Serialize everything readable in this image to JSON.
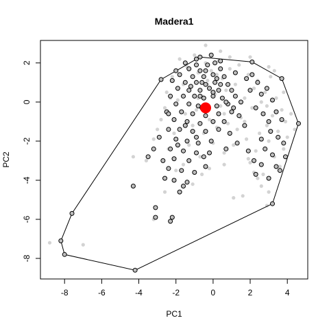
{
  "chart_data": {
    "type": "scatter",
    "title": "Madera1",
    "xlabel": "PC1",
    "ylabel": "PC2",
    "xlim": [
      -9.3,
      5.1
    ],
    "ylim": [
      -9.05,
      3.15
    ],
    "xticks": [
      -8,
      -6,
      -4,
      -2,
      0,
      2,
      4
    ],
    "yticks": [
      -8,
      -6,
      -4,
      -2,
      0,
      2
    ],
    "xtick_labels": [
      "-8",
      "-6",
      "-4",
      "-2",
      "0",
      "2",
      "4"
    ],
    "ytick_labels": [
      "-8",
      "-6",
      "-4",
      "-2",
      "0",
      "2"
    ],
    "grid": false,
    "background_points": [
      [
        -8.8,
        -7.2
      ],
      [
        -7.0,
        -7.3
      ],
      [
        -4.3,
        -2.8
      ],
      [
        -3.2,
        -1.9
      ],
      [
        -3.0,
        -1.4
      ],
      [
        -2.8,
        -0.9
      ],
      [
        -2.6,
        -0.3
      ],
      [
        -2.5,
        0.5
      ],
      [
        -2.4,
        -2.4
      ],
      [
        -2.2,
        1.3
      ],
      [
        -2.1,
        -1.6
      ],
      [
        -1.9,
        0.1
      ],
      [
        -1.8,
        2.2
      ],
      [
        -1.6,
        -3.2
      ],
      [
        -1.5,
        -0.6
      ],
      [
        -1.4,
        1.8
      ],
      [
        -1.3,
        -2.2
      ],
      [
        -1.2,
        0.8
      ],
      [
        -1.1,
        -1.2
      ],
      [
        -1.0,
        2.4
      ],
      [
        -0.9,
        -0.4
      ],
      [
        -0.8,
        1.5
      ],
      [
        -0.7,
        -2.8
      ],
      [
        -0.6,
        0.3
      ],
      [
        -0.5,
        -1.6
      ],
      [
        -0.4,
        2.0
      ],
      [
        -0.3,
        0.9
      ],
      [
        -0.2,
        -0.9
      ],
      [
        -0.1,
        1.6
      ],
      [
        0.0,
        -2.1
      ],
      [
        0.1,
        0.4
      ],
      [
        0.2,
        -1.3
      ],
      [
        0.3,
        2.1
      ],
      [
        0.4,
        -0.2
      ],
      [
        0.5,
        1.2
      ],
      [
        0.6,
        -2.6
      ],
      [
        0.7,
        0.6
      ],
      [
        0.8,
        -1.1
      ],
      [
        0.9,
        1.7
      ],
      [
        1.0,
        -0.5
      ],
      [
        1.1,
        -2.2
      ],
      [
        1.2,
        0.9
      ],
      [
        1.3,
        -1.4
      ],
      [
        1.4,
        1.9
      ],
      [
        1.5,
        -0.8
      ],
      [
        1.6,
        -4.8
      ],
      [
        1.7,
        0.2
      ],
      [
        1.8,
        -1.9
      ],
      [
        1.9,
        1.4
      ],
      [
        2.0,
        -3.1
      ],
      [
        2.1,
        -0.3
      ],
      [
        2.2,
        0.7
      ],
      [
        2.3,
        -2.5
      ],
      [
        2.4,
        1.1
      ],
      [
        2.5,
        -1.6
      ],
      [
        2.6,
        0.0
      ],
      [
        2.7,
        -3.7
      ],
      [
        2.8,
        0.5
      ],
      [
        2.9,
        -1.2
      ],
      [
        3.0,
        -2.0
      ],
      [
        3.1,
        1.3
      ],
      [
        3.2,
        -0.7
      ],
      [
        3.3,
        -2.8
      ],
      [
        3.4,
        0.2
      ],
      [
        3.5,
        -1.5
      ],
      [
        3.6,
        -3.3
      ],
      [
        3.7,
        -0.4
      ],
      [
        3.8,
        -2.4
      ],
      [
        3.9,
        -1.0
      ],
      [
        4.0,
        -1.8
      ],
      [
        4.2,
        -0.6
      ],
      [
        4.4,
        -1.4
      ],
      [
        2.6,
        -4.3
      ],
      [
        2.4,
        -3.9
      ],
      [
        3.0,
        -4.6
      ],
      [
        2.9,
        -5.3
      ],
      [
        -0.6,
        -3.7
      ],
      [
        -1.1,
        -4.2
      ],
      [
        -2.0,
        -3.5
      ],
      [
        -3.2,
        -6.0
      ],
      [
        1.1,
        -4.9
      ],
      [
        -0.2,
        -3.4
      ],
      [
        0.6,
        -3.2
      ],
      [
        -2.6,
        -4.6
      ],
      [
        -3.6,
        -3.0
      ],
      [
        1.9,
        -2.9
      ],
      [
        2.2,
        -3.6
      ],
      [
        -1.6,
        0.9
      ],
      [
        -2.3,
        0.2
      ],
      [
        0.4,
        2.6
      ],
      [
        -0.4,
        2.9
      ],
      [
        0.9,
        2.3
      ],
      [
        2.0,
        2.3
      ],
      [
        3.0,
        1.8
      ],
      [
        3.3,
        1.6
      ],
      [
        3.8,
        0.5
      ],
      [
        -0.3,
        1.1
      ],
      [
        0.2,
        1.4
      ],
      [
        -0.8,
        0.2
      ],
      [
        0.6,
        -0.6
      ],
      [
        1.7,
        -1.0
      ],
      [
        2.9,
        -0.2
      ]
    ],
    "observed_points": [
      [
        -0.9,
        2.2
      ],
      [
        -0.3,
        1.9
      ],
      [
        0.1,
        2.0
      ],
      [
        -1.3,
        1.7
      ],
      [
        -0.7,
        1.6
      ],
      [
        0.4,
        1.7
      ],
      [
        -1.8,
        1.4
      ],
      [
        -1.1,
        1.3
      ],
      [
        -0.5,
        1.3
      ],
      [
        0.0,
        1.4
      ],
      [
        0.6,
        1.3
      ],
      [
        -2.2,
        1.1
      ],
      [
        -1.5,
        1.0
      ],
      [
        -0.9,
        1.0
      ],
      [
        -0.4,
        0.9
      ],
      [
        0.1,
        1.0
      ],
      [
        0.8,
        0.9
      ],
      [
        -1.9,
        0.7
      ],
      [
        -1.3,
        0.6
      ],
      [
        -0.7,
        0.6
      ],
      [
        -0.2,
        0.7
      ],
      [
        0.3,
        0.6
      ],
      [
        1.0,
        0.6
      ],
      [
        -2.3,
        0.3
      ],
      [
        -1.6,
        0.3
      ],
      [
        -1.0,
        0.3
      ],
      [
        -0.5,
        0.2
      ],
      [
        0.0,
        0.3
      ],
      [
        0.5,
        0.2
      ],
      [
        1.2,
        0.3
      ],
      [
        -2.0,
        -0.1
      ],
      [
        -1.3,
        -0.1
      ],
      [
        -0.8,
        -0.2
      ],
      [
        0.2,
        -0.2
      ],
      [
        0.8,
        -0.1
      ],
      [
        1.5,
        0.0
      ],
      [
        -2.5,
        -0.5
      ],
      [
        -1.7,
        -0.5
      ],
      [
        -1.1,
        -0.6
      ],
      [
        -0.4,
        -0.7
      ],
      [
        0.3,
        -0.6
      ],
      [
        1.0,
        -0.5
      ],
      [
        -2.1,
        -0.9
      ],
      [
        -1.4,
        -1.0
      ],
      [
        -0.7,
        -1.1
      ],
      [
        0.0,
        -1.0
      ],
      [
        0.6,
        -1.0
      ],
      [
        -2.4,
        -1.4
      ],
      [
        -1.8,
        -1.4
      ],
      [
        -1.1,
        -1.5
      ],
      [
        -0.4,
        -1.5
      ],
      [
        0.3,
        -1.4
      ],
      [
        -2.0,
        -1.9
      ],
      [
        -1.4,
        -2.0
      ],
      [
        -0.8,
        -2.1
      ],
      [
        -0.1,
        -2.0
      ],
      [
        -2.3,
        -2.4
      ],
      [
        -1.6,
        -2.5
      ],
      [
        -0.9,
        -2.6
      ],
      [
        -2.1,
        -2.9
      ],
      [
        -1.3,
        -3.0
      ],
      [
        -0.5,
        -2.8
      ],
      [
        -2.4,
        -3.4
      ],
      [
        -1.7,
        -3.5
      ],
      [
        -1.0,
        -3.6
      ],
      [
        -0.4,
        -3.3
      ],
      [
        -2.1,
        -4.0
      ],
      [
        -1.4,
        -4.1
      ],
      [
        -1.8,
        -4.6
      ],
      [
        -1.6,
        -4.3
      ],
      [
        -2.6,
        -3.9
      ],
      [
        -4.3,
        -4.3
      ],
      [
        -3.1,
        -5.4
      ],
      [
        -2.2,
        -5.9
      ],
      [
        -2.3,
        -6.1
      ],
      [
        -3.1,
        -5.9
      ],
      [
        -2.7,
        -3.0
      ],
      [
        -3.5,
        -2.8
      ],
      [
        -3.2,
        -2.4
      ],
      [
        -2.9,
        -1.8
      ],
      [
        -2.4,
        -0.6
      ],
      [
        -1.5,
        2.0
      ],
      [
        -2.0,
        1.6
      ],
      [
        -0.1,
        2.4
      ],
      [
        0.4,
        2.1
      ],
      [
        1.2,
        1.5
      ],
      [
        1.8,
        1.2
      ],
      [
        2.1,
        1.4
      ],
      [
        2.4,
        1.0
      ],
      [
        2.0,
        0.6
      ],
      [
        2.6,
        0.4
      ],
      [
        2.9,
        0.7
      ],
      [
        3.2,
        0.1
      ],
      [
        2.3,
        -0.3
      ],
      [
        2.7,
        -0.6
      ],
      [
        3.0,
        -1.0
      ],
      [
        3.4,
        -0.5
      ],
      [
        3.7,
        -0.9
      ],
      [
        3.1,
        -1.5
      ],
      [
        2.6,
        -1.9
      ],
      [
        3.5,
        -1.8
      ],
      [
        3.8,
        -2.1
      ],
      [
        2.8,
        -2.4
      ],
      [
        3.2,
        -2.7
      ],
      [
        3.9,
        -2.8
      ],
      [
        2.6,
        -3.2
      ],
      [
        3.4,
        -3.3
      ],
      [
        2.3,
        -3.7
      ],
      [
        3.0,
        -3.9
      ],
      [
        3.6,
        -3.5
      ],
      [
        1.4,
        -0.7
      ],
      [
        1.7,
        -1.2
      ],
      [
        0.9,
        -1.6
      ],
      [
        1.3,
        -2.1
      ],
      [
        1.9,
        -2.5
      ],
      [
        2.2,
        -3.0
      ],
      [
        0.7,
        -2.4
      ],
      [
        -0.2,
        -2.6
      ],
      [
        -0.9,
        -1.8
      ],
      [
        -1.5,
        -1.2
      ],
      [
        -0.6,
        -0.3
      ],
      [
        -1.2,
        0.8
      ],
      [
        -0.6,
        1.0
      ],
      [
        0.0,
        0.5
      ],
      [
        0.4,
        0.9
      ],
      [
        -0.9,
        1.9
      ],
      [
        -0.4,
        1.6
      ],
      [
        0.2,
        1.2
      ],
      [
        -0.7,
        0.3
      ],
      [
        0.7,
        0.0
      ],
      [
        1.1,
        -0.3
      ],
      [
        -1.9,
        -2.2
      ]
    ],
    "hull_vertices": [
      [
        -0.7,
        2.3
      ],
      [
        2.1,
        2.05
      ],
      [
        3.7,
        1.2
      ],
      [
        4.6,
        -1.1
      ],
      [
        3.2,
        -5.2
      ],
      [
        -4.2,
        -8.6
      ],
      [
        -8.0,
        -7.8
      ],
      [
        -8.2,
        -7.1
      ],
      [
        -7.6,
        -5.7
      ],
      [
        -2.8,
        1.15
      ]
    ],
    "center_point": [
      -0.4,
      -0.3
    ],
    "colors": {
      "background": "#d3d3d3",
      "observed_fill": "#bebebe",
      "observed_stroke": "#000000",
      "center": "#ff0000",
      "hull": "#000000"
    }
  }
}
